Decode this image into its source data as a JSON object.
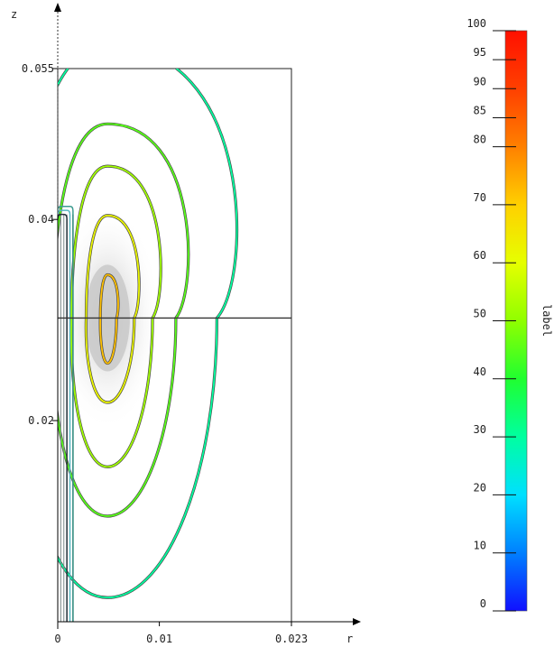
{
  "chart_data": {
    "type": "contour",
    "xlabel": "r",
    "ylabel": "z",
    "xlim": [
      0,
      0.023
    ],
    "ylim": [
      0,
      0.055
    ],
    "x_ticks": [
      {
        "value": 0,
        "label": "0"
      },
      {
        "value": 0.01,
        "label": "0.01"
      },
      {
        "value": 0.023,
        "label": "0.023"
      }
    ],
    "y_ticks": [
      {
        "value": 0.02,
        "label": "0.02"
      },
      {
        "value": 0.04,
        "label": "0.04"
      },
      {
        "value": 0.055,
        "label": "0.055"
      }
    ],
    "horizontal_line_z": 0.0302,
    "core": {
      "r": 0.0049,
      "z": 0.0302
    },
    "contours": [
      {
        "rx": 0.00086,
        "z_top": 0.0345,
        "z_bottom": 0.0257,
        "level": 72
      },
      {
        "rx": 0.00255,
        "z_top": 0.0404,
        "z_bottom": 0.0218,
        "level": 62
      },
      {
        "rx": 0.0043,
        "z_top": 0.0453,
        "z_bottom": 0.0154,
        "level": 52
      },
      {
        "rx": 0.00653,
        "z_top": 0.0495,
        "z_bottom": 0.0105,
        "level": 45
      },
      {
        "rx": 0.01045,
        "z_top": 0.0573,
        "z_bottom": 0.0024,
        "level": 30
      }
    ],
    "colorbar": {
      "label": "label",
      "min": 0,
      "max": 100,
      "ticks": [
        "0",
        "10",
        "20",
        "30",
        "40",
        "50",
        "60",
        "70",
        "80",
        "85",
        "90",
        "95",
        "100"
      ],
      "colors": [
        "#1010ff",
        "#0080ff",
        "#00e0ff",
        "#00ffa0",
        "#20ff30",
        "#90ff00",
        "#e6ff00",
        "#ffd000",
        "#ff8000",
        "#ff4000",
        "#ff1000"
      ]
    }
  }
}
